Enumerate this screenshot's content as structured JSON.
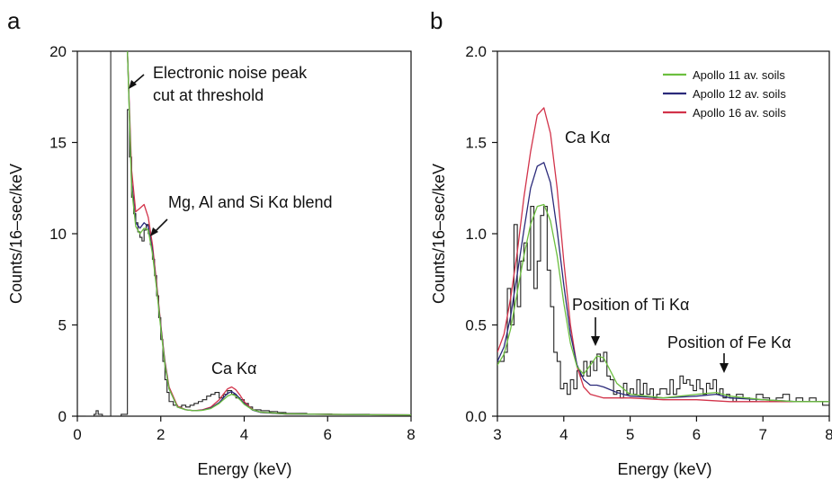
{
  "colors": {
    "histogram": "#222222",
    "apollo11": "#6cbf3f",
    "apollo12": "#2b2a7a",
    "apollo16": "#d2334a",
    "model_a": "#8a2a6a",
    "axis": "#111111"
  },
  "chart_data": [
    {
      "type": "line",
      "panel_label": "a",
      "xlabel": "Energy (keV)",
      "ylabel": "Counts/16–sec/keV",
      "xlim": [
        0,
        8
      ],
      "ylim": [
        0,
        20
      ],
      "xticks": [
        "0",
        "2",
        "4",
        "6",
        "8"
      ],
      "yticks": [
        "0",
        "5",
        "10",
        "15",
        "20"
      ],
      "grid": false,
      "threshold_line_x": 0.8,
      "annotations": [
        {
          "text_lines": [
            "Electronic noise peak",
            "cut at threshold"
          ],
          "arrow_to": [
            1.25,
            18.5
          ]
        },
        {
          "text_lines": [
            "Mg, Al and Si Kα blend"
          ],
          "arrow_to": [
            1.75,
            9.7
          ]
        },
        {
          "text_lines": [
            "Ca Kα"
          ],
          "arrow_to": null
        }
      ],
      "series": [
        {
          "kind": "histogram",
          "x": [
            0.2,
            0.4,
            0.45,
            0.5,
            0.6,
            0.8,
            1.05,
            1.2,
            1.25,
            1.3,
            1.35,
            1.4,
            1.45,
            1.5,
            1.55,
            1.6,
            1.65,
            1.7,
            1.75,
            1.8,
            1.85,
            1.9,
            1.95,
            2.0,
            2.05,
            2.1,
            2.15,
            2.2,
            2.3,
            2.4,
            2.5,
            2.6,
            2.7,
            2.8,
            2.9,
            3.0,
            3.1,
            3.2,
            3.3,
            3.4,
            3.5,
            3.6,
            3.7,
            3.8,
            3.9,
            4.0,
            4.1,
            4.2,
            4.4,
            4.6,
            4.8,
            5.0,
            5.2,
            5.5,
            5.8,
            6.1,
            6.4,
            6.7,
            7.0,
            7.3,
            7.6,
            8.0
          ],
          "y": [
            0.0,
            0.1,
            0.3,
            0.1,
            0.0,
            0.0,
            0.1,
            16.8,
            14.2,
            12.0,
            11.1,
            10.6,
            10.1,
            9.8,
            9.6,
            10.2,
            10.5,
            10.0,
            9.4,
            8.6,
            7.7,
            6.6,
            5.4,
            4.2,
            3.0,
            2.0,
            1.3,
            0.8,
            0.6,
            0.5,
            0.6,
            0.5,
            0.6,
            0.7,
            0.8,
            0.9,
            1.1,
            1.2,
            1.3,
            1.0,
            1.2,
            1.4,
            1.2,
            1.0,
            0.9,
            0.7,
            0.5,
            0.35,
            0.3,
            0.25,
            0.2,
            0.15,
            0.15,
            0.12,
            0.12,
            0.1,
            0.1,
            0.1,
            0.08,
            0.08,
            0.08,
            0.08
          ]
        },
        {
          "kind": "model",
          "color_key": "apollo16",
          "x": [
            1.2,
            1.3,
            1.4,
            1.5,
            1.6,
            1.7,
            1.8,
            1.9,
            2.0,
            2.1,
            2.2,
            2.4,
            2.6,
            2.8,
            3.0,
            3.2,
            3.4,
            3.5,
            3.6,
            3.7,
            3.8,
            3.9,
            4.0,
            4.2,
            4.4,
            5.0,
            6.0,
            7.0,
            8.0
          ],
          "y": [
            20.0,
            13.5,
            11.2,
            11.4,
            11.6,
            10.9,
            9.4,
            7.3,
            5.0,
            3.0,
            1.6,
            0.55,
            0.35,
            0.3,
            0.35,
            0.5,
            0.9,
            1.2,
            1.5,
            1.6,
            1.45,
            1.15,
            0.8,
            0.35,
            0.2,
            0.12,
            0.1,
            0.08,
            0.07
          ]
        },
        {
          "kind": "model",
          "color_key": "apollo12",
          "x": [
            1.2,
            1.3,
            1.4,
            1.5,
            1.6,
            1.7,
            1.8,
            1.9,
            2.0,
            2.1,
            2.2,
            2.4,
            2.6,
            2.8,
            3.0,
            3.2,
            3.4,
            3.5,
            3.6,
            3.7,
            3.8,
            3.9,
            4.0,
            4.2,
            4.4,
            5.0,
            6.0,
            7.0,
            8.0
          ],
          "y": [
            20.0,
            12.8,
            10.6,
            10.3,
            10.6,
            10.4,
            9.1,
            7.1,
            4.9,
            2.9,
            1.5,
            0.5,
            0.35,
            0.3,
            0.33,
            0.45,
            0.75,
            1.0,
            1.25,
            1.35,
            1.2,
            0.95,
            0.7,
            0.33,
            0.2,
            0.12,
            0.1,
            0.08,
            0.07
          ]
        },
        {
          "kind": "model",
          "color_key": "apollo11",
          "x": [
            1.2,
            1.3,
            1.4,
            1.5,
            1.6,
            1.7,
            1.8,
            1.9,
            2.0,
            2.1,
            2.2,
            2.4,
            2.6,
            2.8,
            3.0,
            3.2,
            3.4,
            3.5,
            3.6,
            3.7,
            3.8,
            3.9,
            4.0,
            4.2,
            4.4,
            5.0,
            6.0,
            7.0,
            8.0
          ],
          "y": [
            20.0,
            12.5,
            10.4,
            10.0,
            10.3,
            10.2,
            8.9,
            7.0,
            4.8,
            2.8,
            1.5,
            0.5,
            0.35,
            0.3,
            0.32,
            0.42,
            0.7,
            0.9,
            1.1,
            1.2,
            1.1,
            0.9,
            0.65,
            0.35,
            0.22,
            0.13,
            0.1,
            0.08,
            0.07
          ]
        }
      ]
    },
    {
      "type": "line",
      "panel_label": "b",
      "xlabel": "Energy (keV)",
      "ylabel": "Counts/16–sec/keV",
      "xlim": [
        3,
        8
      ],
      "ylim": [
        0,
        2.0
      ],
      "xticks": [
        "3",
        "4",
        "5",
        "6",
        "7",
        "8"
      ],
      "yticks": [
        "0.0",
        "0.5",
        "1.0",
        "1.5",
        "2.0"
      ],
      "grid": false,
      "legend_position": "top-right",
      "legend": [
        {
          "label": "Apollo 11 av. soils",
          "color_key": "apollo11"
        },
        {
          "label": "Apollo 12 av. soils",
          "color_key": "apollo12"
        },
        {
          "label": "Apollo 16 av. soils",
          "color_key": "apollo16"
        }
      ],
      "annotations": [
        {
          "text_lines": [
            "Ca Kα"
          ],
          "arrow_to": null
        },
        {
          "text_lines": [
            "Position of Ti Kα"
          ],
          "arrow_to": [
            4.51,
            0.38
          ]
        },
        {
          "text_lines": [
            "Position of Fe Kα"
          ],
          "arrow_to": [
            6.4,
            0.25
          ]
        }
      ],
      "series": [
        {
          "kind": "histogram",
          "x": [
            3.0,
            3.1,
            3.15,
            3.2,
            3.25,
            3.3,
            3.35,
            3.4,
            3.45,
            3.5,
            3.55,
            3.6,
            3.65,
            3.7,
            3.75,
            3.8,
            3.85,
            3.9,
            3.95,
            4.0,
            4.05,
            4.1,
            4.15,
            4.2,
            4.25,
            4.3,
            4.35,
            4.4,
            4.45,
            4.5,
            4.55,
            4.6,
            4.65,
            4.7,
            4.75,
            4.8,
            4.85,
            4.9,
            4.95,
            5.0,
            5.05,
            5.1,
            5.15,
            5.2,
            5.25,
            5.3,
            5.35,
            5.4,
            5.45,
            5.5,
            5.55,
            5.6,
            5.65,
            5.7,
            5.75,
            5.8,
            5.85,
            5.9,
            5.95,
            6.0,
            6.05,
            6.1,
            6.15,
            6.2,
            6.25,
            6.3,
            6.35,
            6.4,
            6.45,
            6.5,
            6.55,
            6.6,
            6.7,
            6.8,
            6.9,
            7.0,
            7.1,
            7.2,
            7.3,
            7.4,
            7.5,
            7.6,
            7.7,
            7.8,
            7.9,
            8.0
          ],
          "y": [
            0.3,
            0.35,
            0.7,
            0.5,
            1.05,
            0.6,
            0.85,
            0.95,
            0.8,
            1.15,
            0.7,
            0.85,
            1.1,
            1.15,
            0.8,
            0.6,
            0.35,
            0.3,
            0.15,
            0.18,
            0.12,
            0.2,
            0.15,
            0.25,
            0.22,
            0.3,
            0.22,
            0.3,
            0.25,
            0.34,
            0.3,
            0.35,
            0.22,
            0.2,
            0.12,
            0.14,
            0.1,
            0.18,
            0.12,
            0.15,
            0.12,
            0.2,
            0.12,
            0.18,
            0.12,
            0.15,
            0.1,
            0.12,
            0.15,
            0.15,
            0.12,
            0.2,
            0.12,
            0.15,
            0.22,
            0.18,
            0.2,
            0.17,
            0.14,
            0.2,
            0.15,
            0.12,
            0.18,
            0.15,
            0.2,
            0.12,
            0.15,
            0.1,
            0.12,
            0.1,
            0.08,
            0.12,
            0.1,
            0.08,
            0.12,
            0.1,
            0.08,
            0.1,
            0.12,
            0.08,
            0.1,
            0.08,
            0.1,
            0.08,
            0.06,
            0.06
          ]
        },
        {
          "kind": "model",
          "color_key": "apollo16",
          "x": [
            3.0,
            3.1,
            3.2,
            3.3,
            3.4,
            3.5,
            3.6,
            3.7,
            3.8,
            3.9,
            4.0,
            4.1,
            4.2,
            4.3,
            4.4,
            4.6,
            4.8,
            5.0,
            5.5,
            6.0,
            6.5,
            7.0,
            7.5,
            8.0
          ],
          "y": [
            0.35,
            0.45,
            0.65,
            0.9,
            1.2,
            1.45,
            1.65,
            1.69,
            1.55,
            1.25,
            0.85,
            0.5,
            0.27,
            0.16,
            0.12,
            0.1,
            0.1,
            0.1,
            0.09,
            0.09,
            0.08,
            0.08,
            0.08,
            0.08
          ]
        },
        {
          "kind": "model",
          "color_key": "apollo12",
          "x": [
            3.0,
            3.1,
            3.2,
            3.3,
            3.4,
            3.5,
            3.6,
            3.7,
            3.8,
            3.9,
            4.0,
            4.1,
            4.2,
            4.3,
            4.4,
            4.5,
            4.6,
            4.8,
            5.0,
            5.5,
            6.0,
            6.3,
            6.5,
            7.0,
            7.5,
            8.0
          ],
          "y": [
            0.3,
            0.38,
            0.55,
            0.78,
            1.02,
            1.25,
            1.37,
            1.39,
            1.28,
            1.02,
            0.72,
            0.45,
            0.28,
            0.2,
            0.17,
            0.17,
            0.16,
            0.13,
            0.11,
            0.1,
            0.11,
            0.12,
            0.1,
            0.09,
            0.08,
            0.08
          ]
        },
        {
          "kind": "model",
          "color_key": "apollo11",
          "x": [
            3.0,
            3.1,
            3.2,
            3.3,
            3.4,
            3.5,
            3.6,
            3.7,
            3.8,
            3.9,
            4.0,
            4.1,
            4.2,
            4.3,
            4.4,
            4.5,
            4.6,
            4.7,
            4.8,
            5.0,
            5.5,
            6.0,
            6.3,
            6.5,
            7.0,
            7.5,
            8.0
          ],
          "y": [
            0.28,
            0.34,
            0.48,
            0.68,
            0.88,
            1.05,
            1.15,
            1.16,
            1.07,
            0.88,
            0.62,
            0.4,
            0.27,
            0.23,
            0.28,
            0.33,
            0.32,
            0.25,
            0.18,
            0.12,
            0.1,
            0.12,
            0.13,
            0.11,
            0.09,
            0.08,
            0.08
          ]
        }
      ]
    }
  ]
}
